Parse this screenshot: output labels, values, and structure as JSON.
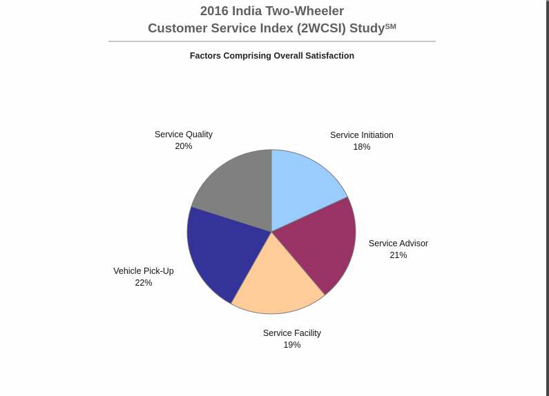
{
  "header": {
    "title_line1": "2016 India Two-Wheeler",
    "title_line2": "Customer Service Index (2WCSI) Study",
    "title_superscript": "SM",
    "subtitle": "Factors Comprising Overall Satisfaction"
  },
  "chart_data": {
    "type": "pie",
    "title": "2016 India Two-Wheeler Customer Service Index (2WCSI) Study℠",
    "subtitle": "Factors Comprising Overall Satisfaction",
    "start_angle": "12 o'clock",
    "direction": "clockwise",
    "categories": [
      "Service Initiation",
      "Service Advisor",
      "Service Facility",
      "Vehicle Pick-Up",
      "Service Quality"
    ],
    "values": [
      18,
      21,
      19,
      22,
      20
    ],
    "unit": "%",
    "colors": [
      "#99ccff",
      "#993366",
      "#ffcc99",
      "#333399",
      "#808080"
    ],
    "legend": "none (data labels outside slices)"
  },
  "labels": [
    {
      "name": "Service Initiation",
      "pct": "18%"
    },
    {
      "name": "Service Advisor",
      "pct": "21%"
    },
    {
      "name": "Service Facility",
      "pct": "19%"
    },
    {
      "name": "Vehicle Pick-Up",
      "pct": "22%"
    },
    {
      "name": "Service Quality",
      "pct": "20%"
    }
  ]
}
